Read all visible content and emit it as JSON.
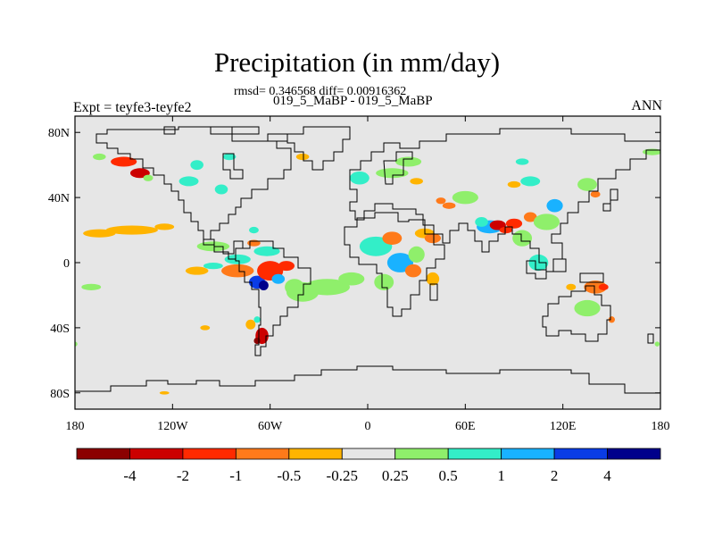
{
  "figure": {
    "title": "Precipitation (in mm/day)",
    "stats": "rmsd= 0.346568 diff= 0.00916362",
    "subtitle": "019_5_MaBP - 019_5_MaBP",
    "left_label": "Expt = teyfe3-teyfe2",
    "right_label": "ANN"
  },
  "map": {
    "projection": "cylindrical-equidistant",
    "lon_range": [
      -180,
      180
    ],
    "lat_range": [
      -90,
      90
    ],
    "background_color": "#e6e6e6",
    "lon_ticks": [
      {
        "value": -180,
        "label": "180"
      },
      {
        "value": -120,
        "label": "120W"
      },
      {
        "value": -60,
        "label": "60W"
      },
      {
        "value": 0,
        "label": "0"
      },
      {
        "value": 60,
        "label": "60E"
      },
      {
        "value": 120,
        "label": "120E"
      },
      {
        "value": 180,
        "label": "180"
      }
    ],
    "lat_ticks": [
      {
        "value": 80,
        "label": "80N"
      },
      {
        "value": 40,
        "label": "40N"
      },
      {
        "value": 0,
        "label": "0"
      },
      {
        "value": -40,
        "label": "40S"
      },
      {
        "value": -80,
        "label": "80S"
      }
    ]
  },
  "colorbar": {
    "colors": [
      "#8b0000",
      "#cc0000",
      "#ff2a00",
      "#ff7a1a",
      "#ffb400",
      "#e6e6e6",
      "#8fef6b",
      "#33eec8",
      "#19b2ff",
      "#0a3ce6",
      "#00008b"
    ],
    "labels": [
      "-4",
      "-2",
      "-1",
      "-0.5",
      "-0.25",
      "0.25",
      "0.5",
      "1",
      "2",
      "4"
    ]
  },
  "precip_patches": [
    {
      "lon": -145,
      "lat": 20,
      "rx": 16,
      "ry": 2.8,
      "value": -0.4
    },
    {
      "lon": -165,
      "lat": 18,
      "rx": 10,
      "ry": 2.5,
      "value": -0.3
    },
    {
      "lon": -125,
      "lat": 22,
      "rx": 6,
      "ry": 2,
      "value": -0.3
    },
    {
      "lon": -170,
      "lat": -15,
      "rx": 6,
      "ry": 2,
      "value": 0.4
    },
    {
      "lon": -95,
      "lat": 10,
      "rx": 10,
      "ry": 3,
      "value": 0.4
    },
    {
      "lon": -105,
      "lat": -5,
      "rx": 7,
      "ry": 2.5,
      "value": -0.4
    },
    {
      "lon": -95,
      "lat": -2,
      "rx": 6,
      "ry": 2,
      "value": 0.8
    },
    {
      "lon": -80,
      "lat": -5,
      "rx": 10,
      "ry": 4,
      "value": -0.8
    },
    {
      "lon": -80,
      "lat": 2,
      "rx": 8,
      "ry": 3,
      "value": 0.8
    },
    {
      "lon": -68,
      "lat": -12,
      "rx": 5,
      "ry": 4,
      "value": 2.5
    },
    {
      "lon": -64,
      "lat": -14,
      "rx": 3,
      "ry": 3,
      "value": 5
    },
    {
      "lon": -60,
      "lat": -5,
      "rx": 8,
      "ry": 6,
      "value": -1.5
    },
    {
      "lon": -55,
      "lat": -10,
      "rx": 4,
      "ry": 3,
      "value": 1.5
    },
    {
      "lon": -50,
      "lat": -2,
      "rx": 5,
      "ry": 3,
      "value": -1.5
    },
    {
      "lon": -45,
      "lat": -15,
      "rx": 6,
      "ry": 5,
      "value": 0.4
    },
    {
      "lon": -62,
      "lat": 7,
      "rx": 8,
      "ry": 3,
      "value": 0.7
    },
    {
      "lon": -70,
      "lat": 12,
      "rx": 4,
      "ry": 2,
      "value": -0.6
    },
    {
      "lon": -40,
      "lat": -18,
      "rx": 10,
      "ry": 6,
      "value": 0.35
    },
    {
      "lon": -25,
      "lat": -15,
      "rx": 14,
      "ry": 5,
      "value": 0.35
    },
    {
      "lon": -10,
      "lat": -10,
      "rx": 8,
      "ry": 4,
      "value": 0.35
    },
    {
      "lon": -65,
      "lat": -45,
      "rx": 4,
      "ry": 5,
      "value": -2
    },
    {
      "lon": -68,
      "lat": -48,
      "rx": 2,
      "ry": 2,
      "value": -5
    },
    {
      "lon": -72,
      "lat": -38,
      "rx": 3,
      "ry": 3,
      "value": -0.4
    },
    {
      "lon": -68,
      "lat": -35,
      "rx": 2,
      "ry": 2,
      "value": 0.8
    },
    {
      "lon": 5,
      "lat": 10,
      "rx": 10,
      "ry": 6,
      "value": 0.8
    },
    {
      "lon": 15,
      "lat": 15,
      "rx": 6,
      "ry": 4,
      "value": -0.8
    },
    {
      "lon": 20,
      "lat": 0,
      "rx": 8,
      "ry": 6,
      "value": 1.2
    },
    {
      "lon": 28,
      "lat": -5,
      "rx": 5,
      "ry": 4,
      "value": -0.8
    },
    {
      "lon": 10,
      "lat": -12,
      "rx": 6,
      "ry": 5,
      "value": 0.4
    },
    {
      "lon": 35,
      "lat": 18,
      "rx": 6,
      "ry": 3,
      "value": -0.4
    },
    {
      "lon": 40,
      "lat": 15,
      "rx": 5,
      "ry": 3,
      "value": -0.6
    },
    {
      "lon": 30,
      "lat": 5,
      "rx": 5,
      "ry": 5,
      "value": 0.4
    },
    {
      "lon": 40,
      "lat": -10,
      "rx": 4,
      "ry": 4,
      "value": -0.4
    },
    {
      "lon": 75,
      "lat": 22,
      "rx": 8,
      "ry": 4,
      "value": 1.5
    },
    {
      "lon": 80,
      "lat": 23,
      "rx": 5,
      "ry": 3,
      "value": -2.5
    },
    {
      "lon": 85,
      "lat": 20,
      "rx": 4,
      "ry": 2,
      "value": -1.5
    },
    {
      "lon": 90,
      "lat": 24,
      "rx": 5,
      "ry": 3,
      "value": -1.2
    },
    {
      "lon": 70,
      "lat": 25,
      "rx": 4,
      "ry": 3,
      "value": 0.7
    },
    {
      "lon": 95,
      "lat": 15,
      "rx": 6,
      "ry": 5,
      "value": 0.4
    },
    {
      "lon": 100,
      "lat": 28,
      "rx": 4,
      "ry": 3,
      "value": -0.6
    },
    {
      "lon": 110,
      "lat": 25,
      "rx": 8,
      "ry": 5,
      "value": 0.4
    },
    {
      "lon": 115,
      "lat": 35,
      "rx": 5,
      "ry": 4,
      "value": 1.5
    },
    {
      "lon": 105,
      "lat": 0,
      "rx": 6,
      "ry": 5,
      "value": 0.8
    },
    {
      "lon": 140,
      "lat": -15,
      "rx": 7,
      "ry": 4,
      "value": -0.7
    },
    {
      "lon": 145,
      "lat": -15,
      "rx": 3,
      "ry": 2,
      "value": -1.5
    },
    {
      "lon": 125,
      "lat": -15,
      "rx": 3,
      "ry": 2,
      "value": -0.4
    },
    {
      "lon": 135,
      "lat": -28,
      "rx": 8,
      "ry": 5,
      "value": 0.5
    },
    {
      "lon": 150,
      "lat": -35,
      "rx": 2,
      "ry": 2,
      "value": -0.5
    },
    {
      "lon": 15,
      "lat": 55,
      "rx": 10,
      "ry": 3,
      "value": 0.5
    },
    {
      "lon": 25,
      "lat": 62,
      "rx": 8,
      "ry": 3,
      "value": 0.5
    },
    {
      "lon": 30,
      "lat": 50,
      "rx": 4,
      "ry": 2,
      "value": -0.4
    },
    {
      "lon": -5,
      "lat": 52,
      "rx": 6,
      "ry": 4,
      "value": 0.6
    },
    {
      "lon": 60,
      "lat": 40,
      "rx": 8,
      "ry": 4,
      "value": 0.5
    },
    {
      "lon": 50,
      "lat": 35,
      "rx": 4,
      "ry": 2,
      "value": -0.5
    },
    {
      "lon": 100,
      "lat": 50,
      "rx": 6,
      "ry": 3,
      "value": 0.7
    },
    {
      "lon": 90,
      "lat": 48,
      "rx": 4,
      "ry": 2,
      "value": -0.4
    },
    {
      "lon": 135,
      "lat": 48,
      "rx": 6,
      "ry": 4,
      "value": 0.5
    },
    {
      "lon": 140,
      "lat": 42,
      "rx": 3,
      "ry": 2,
      "value": -0.7
    },
    {
      "lon": 95,
      "lat": 62,
      "rx": 4,
      "ry": 2,
      "value": 0.8
    },
    {
      "lon": 175,
      "lat": 68,
      "rx": 6,
      "ry": 2,
      "value": 0.5
    },
    {
      "lon": -150,
      "lat": 62,
      "rx": 8,
      "ry": 3,
      "value": -1.2
    },
    {
      "lon": -140,
      "lat": 55,
      "rx": 6,
      "ry": 3,
      "value": -2.2
    },
    {
      "lon": -135,
      "lat": 52,
      "rx": 3,
      "ry": 2,
      "value": 0.5
    },
    {
      "lon": -165,
      "lat": 65,
      "rx": 4,
      "ry": 2,
      "value": 0.5
    },
    {
      "lon": -110,
      "lat": 50,
      "rx": 6,
      "ry": 3,
      "value": 0.6
    },
    {
      "lon": -105,
      "lat": 60,
      "rx": 4,
      "ry": 3,
      "value": 0.8
    },
    {
      "lon": -90,
      "lat": 45,
      "rx": 4,
      "ry": 3,
      "value": 0.7
    },
    {
      "lon": -85,
      "lat": 65,
      "rx": 4,
      "ry": 2,
      "value": 0.6
    },
    {
      "lon": -40,
      "lat": 65,
      "rx": 4,
      "ry": 2,
      "value": -0.4
    },
    {
      "lon": 45,
      "lat": 38,
      "rx": 3,
      "ry": 2,
      "value": -0.6
    },
    {
      "lon": -180,
      "lat": -50,
      "rx": 1.5,
      "ry": 1.5,
      "value": 0.4
    },
    {
      "lon": 178,
      "lat": -50,
      "rx": 1.5,
      "ry": 1.5,
      "value": 0.4
    },
    {
      "lon": -70,
      "lat": 20,
      "rx": 3,
      "ry": 2,
      "value": 0.6
    },
    {
      "lon": -100,
      "lat": -40,
      "rx": 3,
      "ry": 1.5,
      "value": -0.3
    },
    {
      "lon": -125,
      "lat": -80,
      "rx": 3,
      "ry": 1,
      "value": -0.3
    }
  ]
}
